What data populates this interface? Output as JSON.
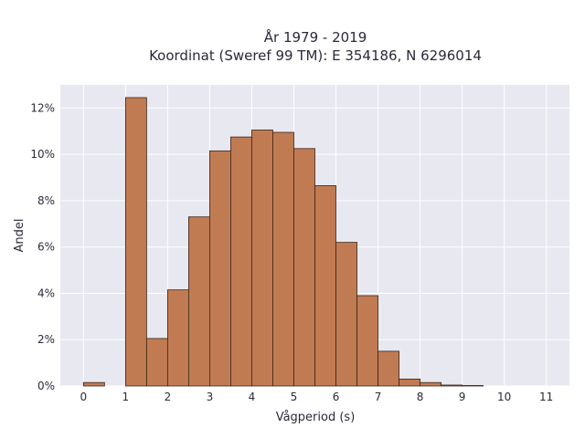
{
  "chart_data": {
    "type": "bar",
    "title_lines": [
      "År 1979 - 2019",
      "Koordinat (Sweref 99 TM): E 354186, N 6296014"
    ],
    "xlabel": "Vågperiod (s)",
    "ylabel": "Andel",
    "x_ticks": [
      "0",
      "1",
      "2",
      "3",
      "4",
      "5",
      "6",
      "7",
      "8",
      "9",
      "10",
      "11"
    ],
    "y_ticks": [
      "0%",
      "2%",
      "4%",
      "6%",
      "8%",
      "10%",
      "12%"
    ],
    "xlim": [
      -0.55,
      11.55
    ],
    "ylim": [
      0,
      13
    ],
    "bin_width": 0.5,
    "bars": [
      {
        "x0": 0.0,
        "value": 0.15
      },
      {
        "x0": 0.5,
        "value": 0.0
      },
      {
        "x0": 1.0,
        "value": 12.45
      },
      {
        "x0": 1.5,
        "value": 2.05
      },
      {
        "x0": 2.0,
        "value": 4.15
      },
      {
        "x0": 2.5,
        "value": 7.3
      },
      {
        "x0": 3.0,
        "value": 10.15
      },
      {
        "x0": 3.5,
        "value": 10.75
      },
      {
        "x0": 4.0,
        "value": 11.05
      },
      {
        "x0": 4.5,
        "value": 10.95
      },
      {
        "x0": 5.0,
        "value": 10.25
      },
      {
        "x0": 5.5,
        "value": 8.65
      },
      {
        "x0": 6.0,
        "value": 6.2
      },
      {
        "x0": 6.5,
        "value": 3.9
      },
      {
        "x0": 7.0,
        "value": 1.5
      },
      {
        "x0": 7.5,
        "value": 0.3
      },
      {
        "x0": 8.0,
        "value": 0.15
      },
      {
        "x0": 8.5,
        "value": 0.04
      },
      {
        "x0": 9.0,
        "value": 0.02
      }
    ],
    "grid": true,
    "colors": {
      "bar_fill": "#c17b53",
      "bar_stroke": "#3a2416",
      "plot_background": "#e8e8f0",
      "grid": "#ffffff"
    }
  }
}
